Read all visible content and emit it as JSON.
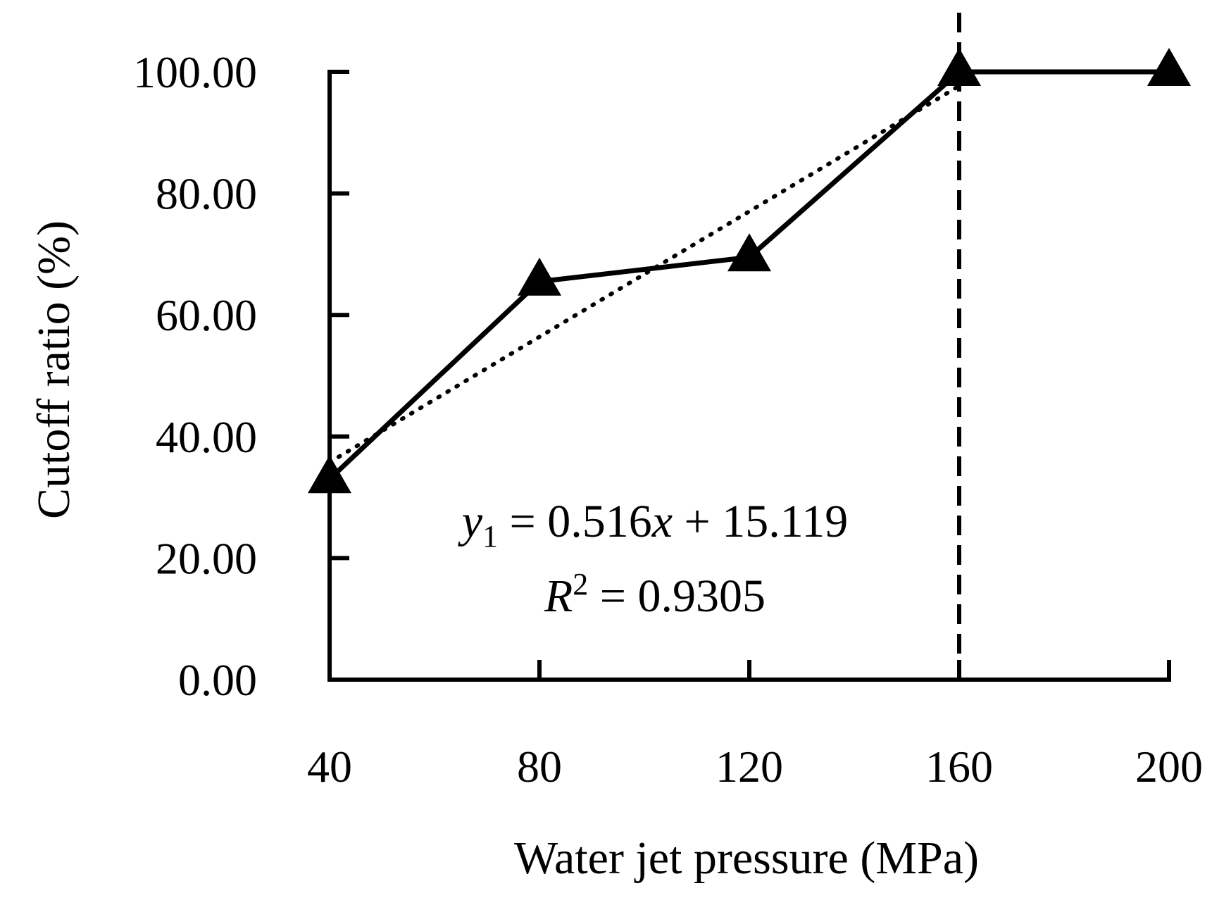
{
  "chart_data": {
    "type": "line",
    "title": "",
    "xlabel": "Water jet pressure (MPa)",
    "ylabel": "Cutoff ratio (%)",
    "x": [
      40,
      80,
      120,
      160,
      200
    ],
    "xticks": [
      "40",
      "80",
      "120",
      "160",
      "200"
    ],
    "yticks": [
      "0.00",
      "20.00",
      "40.00",
      "60.00",
      "80.00",
      "100.00"
    ],
    "ylim": [
      0,
      100
    ],
    "xlim": [
      40,
      200
    ],
    "series": [
      {
        "name": "Cutoff ratio",
        "marker": "triangle",
        "line": "solid",
        "values": [
          33,
          65.5,
          69.5,
          100,
          100
        ]
      }
    ],
    "trendline": {
      "style": "dotted",
      "slope": 0.516,
      "intercept": 15.119,
      "x_range": [
        40,
        160
      ]
    },
    "vline": {
      "x": 160,
      "style": "dashed"
    },
    "annotations": {
      "equation": {
        "y": "y",
        "sub": "1",
        "rest": " = 0.516",
        "x": "x",
        "tail": " + 15.119"
      },
      "r2": {
        "r": "R",
        "sup": "2",
        "rest": " = 0.9305"
      }
    }
  }
}
